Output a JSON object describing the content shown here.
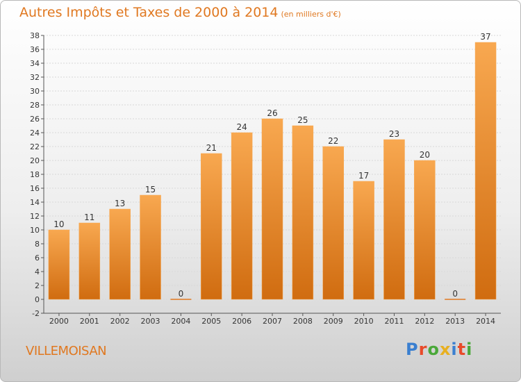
{
  "header": {
    "title": "Autres Impôts et Taxes de 2000 à 2014",
    "unit": "(en milliers d'€)"
  },
  "footer": {
    "town": "VILLEMOISAN",
    "logo": "Proxiti"
  },
  "colors": {
    "accent": "#e07820",
    "bar_light": "#f8a850",
    "bar_dark": "#d06c10"
  },
  "chart_data": {
    "type": "bar",
    "title": "Autres Impôts et Taxes de 2000 à 2014",
    "subtitle": "(en milliers d'€)",
    "categories": [
      "2000",
      "2001",
      "2002",
      "2003",
      "2004",
      "2005",
      "2006",
      "2007",
      "2008",
      "2009",
      "2010",
      "2011",
      "2012",
      "2013",
      "2014"
    ],
    "values": [
      10,
      11,
      13,
      15,
      0,
      21,
      24,
      26,
      25,
      22,
      17,
      23,
      20,
      0,
      37
    ],
    "ylim": [
      -2,
      38
    ],
    "ytick_step": 2,
    "grid": true
  }
}
